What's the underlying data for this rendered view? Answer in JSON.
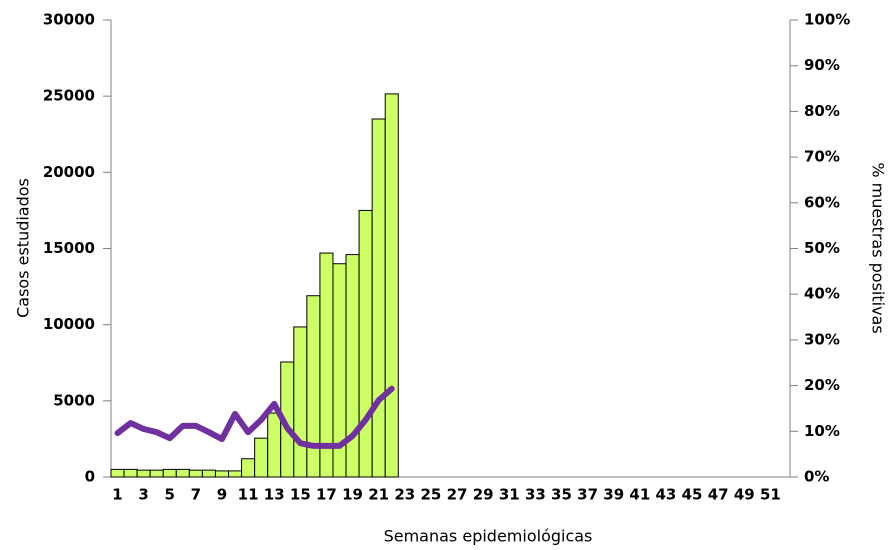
{
  "chart_data": {
    "type": "bar_line",
    "x_label": "Semanas epidemiológicas",
    "y_label": "Casos estudiados",
    "y2_label": "% muestras positivas",
    "categories": [
      "1",
      null,
      "3",
      null,
      "5",
      null,
      "7",
      null,
      "9",
      null,
      "11",
      null,
      "13",
      null,
      "15",
      null,
      "17",
      null,
      "19",
      null,
      "21",
      null,
      "23",
      null,
      "25",
      null,
      "27",
      null,
      "29",
      null,
      "31",
      null,
      "33",
      null,
      "35",
      null,
      "37",
      null,
      "39",
      null,
      "41",
      null,
      "43",
      null,
      "45",
      null,
      "47",
      null,
      "49",
      null,
      "51",
      null
    ],
    "series": [
      {
        "type": "bar",
        "color": "#ccff66",
        "values": [
          500,
          500,
          450,
          450,
          500,
          500,
          450,
          450,
          400,
          400,
          1200,
          2550,
          4200,
          7550,
          9850,
          11900,
          14700,
          14000,
          14600,
          17500,
          23500,
          25150,
          null,
          null,
          null,
          null,
          null,
          null,
          null,
          null,
          null,
          null,
          null,
          null,
          null,
          null,
          null,
          null,
          null,
          null,
          null,
          null,
          null,
          null,
          null,
          null,
          null,
          null,
          null,
          null,
          null,
          null
        ]
      },
      {
        "type": "line",
        "axis": "y2",
        "color": "#7030a0",
        "values": [
          9.6,
          11.8,
          10.5,
          9.8,
          8.5,
          11.2,
          11.2,
          9.8,
          8.3,
          13.8,
          9.8,
          12.5,
          16,
          10.7,
          7.4,
          6.8,
          6.8,
          6.8,
          9,
          12.5,
          16.8,
          19.3,
          null,
          null,
          null,
          null,
          null,
          null,
          null,
          null,
          null,
          null,
          null,
          null,
          null,
          null,
          null,
          null,
          null,
          null,
          null,
          null,
          null,
          null,
          null,
          null,
          null,
          null,
          null,
          null,
          null,
          null
        ]
      }
    ],
    "ylim": [
      0,
      30000
    ],
    "yticks": [
      0,
      5000,
      10000,
      15000,
      20000,
      25000,
      30000
    ],
    "y2lim": [
      0,
      100
    ],
    "y2ticks": [
      {
        "value": 0,
        "label": "0%"
      },
      {
        "value": 10,
        "label": "10%"
      },
      {
        "value": 20,
        "label": "20%"
      },
      {
        "value": 30,
        "label": "30%"
      },
      {
        "value": 40,
        "label": "40%"
      },
      {
        "value": 50,
        "label": "50%"
      },
      {
        "value": 60,
        "label": "60%"
      },
      {
        "value": 70,
        "label": "70%"
      },
      {
        "value": 80,
        "label": "80%"
      },
      {
        "value": 90,
        "label": "90%"
      },
      {
        "value": 100,
        "label": "100%"
      }
    ]
  }
}
